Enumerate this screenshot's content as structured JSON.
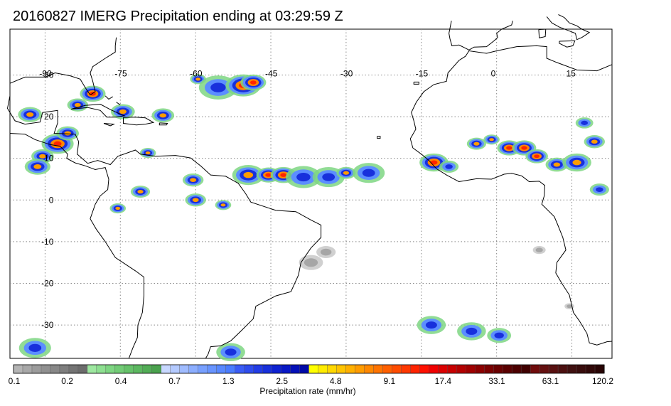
{
  "title": "20160827 IMERG Precipitation ending at 03:29:59 Z",
  "map": {
    "lon_range": [
      -97,
      23
    ],
    "lat_range": [
      -38,
      41
    ],
    "lon_grid": [
      -90,
      -75,
      -60,
      -45,
      -30,
      -15,
      0,
      15
    ],
    "lat_grid": [
      30,
      20,
      10,
      0,
      -10,
      -20,
      -30
    ],
    "lon_labels": [
      "-90",
      "-75",
      "-60",
      "-45",
      "-30",
      "-15",
      "0",
      "15"
    ],
    "lat_labels": [
      "30",
      "20",
      "10",
      "0",
      "-10",
      "-20",
      "-30"
    ],
    "coast_color": "#000000",
    "grid_color": "#888888"
  },
  "colorbar": {
    "label": "Precipitation rate (mm/hr)",
    "tick_labels": [
      "0.1",
      "0.2",
      "0.4",
      "0.7",
      "1.3",
      "2.5",
      "4.8",
      "9.1",
      "17.4",
      "33.1",
      "63.1",
      "120.2"
    ],
    "colors": [
      "#b4b4b4",
      "#a8a8a8",
      "#9c9c9c",
      "#909090",
      "#888888",
      "#7e7e7e",
      "#747474",
      "#6c6c6c",
      "#9ee8a0",
      "#8ee091",
      "#7ed682",
      "#72cc76",
      "#66c26a",
      "#5cb860",
      "#52ad56",
      "#4aa24e",
      "#c8d8ff",
      "#b4caff",
      "#a0bcff",
      "#8caeff",
      "#78a0ff",
      "#6894ff",
      "#5888ff",
      "#4a7cff",
      "#3a5cf6",
      "#2e4cee",
      "#223ce6",
      "#1830dc",
      "#0e22d2",
      "#0818c6",
      "#0410b8",
      "#000aa8",
      "#ffff00",
      "#ffec00",
      "#ffd800",
      "#ffc400",
      "#ffb000",
      "#ff9c00",
      "#ff8800",
      "#ff7400",
      "#ff6000",
      "#ff4c00",
      "#ff3800",
      "#ff2400",
      "#ff1000",
      "#f00000",
      "#dc0000",
      "#c80000",
      "#b40000",
      "#a00000",
      "#8c0000",
      "#7a0000",
      "#6a0000",
      "#5a0000",
      "#4c0000",
      "#400000",
      "#700c0c",
      "#641010",
      "#581010",
      "#4c1010",
      "#401010",
      "#380c0c",
      "#300808",
      "#280404"
    ]
  },
  "rain_cells": [
    {
      "lon": -80.5,
      "lat": 25.5,
      "r": 1.6,
      "level": 3
    },
    {
      "lon": -83.5,
      "lat": 22.8,
      "r": 1.3,
      "level": 2
    },
    {
      "lon": -93,
      "lat": 20.5,
      "r": 1.5,
      "level": 2
    },
    {
      "lon": -87.5,
      "lat": 13.5,
      "r": 2.0,
      "level": 3
    },
    {
      "lon": -90.5,
      "lat": 10.5,
      "r": 1.4,
      "level": 2
    },
    {
      "lon": -91.5,
      "lat": 8.0,
      "r": 1.6,
      "level": 2
    },
    {
      "lon": -85.5,
      "lat": 16.0,
      "r": 1.4,
      "level": 2
    },
    {
      "lon": -74.5,
      "lat": 21.2,
      "r": 1.5,
      "level": 2
    },
    {
      "lon": -66.5,
      "lat": 20.3,
      "r": 1.4,
      "level": 2
    },
    {
      "lon": -59.5,
      "lat": 29.0,
      "r": 1.0,
      "level": 2
    },
    {
      "lon": -55.5,
      "lat": 27.0,
      "r": 2.4,
      "level": 1
    },
    {
      "lon": -50.5,
      "lat": 27.5,
      "r": 2.2,
      "level": 3
    },
    {
      "lon": -48.5,
      "lat": 28.2,
      "r": 1.6,
      "level": 3
    },
    {
      "lon": -69.5,
      "lat": 11.3,
      "r": 1.0,
      "level": 2
    },
    {
      "lon": -60.5,
      "lat": 4.8,
      "r": 1.3,
      "level": 2
    },
    {
      "lon": -71.0,
      "lat": 2.0,
      "r": 1.2,
      "level": 2
    },
    {
      "lon": -60.0,
      "lat": 0.0,
      "r": 1.3,
      "level": 2
    },
    {
      "lon": -54.5,
      "lat": -1.2,
      "r": 1.0,
      "level": 2
    },
    {
      "lon": -75.5,
      "lat": -2.0,
      "r": 1.0,
      "level": 2
    },
    {
      "lon": -49.5,
      "lat": 6.0,
      "r": 2.0,
      "level": 2
    },
    {
      "lon": -45.5,
      "lat": 6.0,
      "r": 1.5,
      "level": 3
    },
    {
      "lon": -42.5,
      "lat": 6.0,
      "r": 1.6,
      "level": 3
    },
    {
      "lon": -38.5,
      "lat": 5.5,
      "r": 2.2,
      "level": 1
    },
    {
      "lon": -33.5,
      "lat": 5.5,
      "r": 2.0,
      "level": 1
    },
    {
      "lon": -30.0,
      "lat": 6.5,
      "r": 1.2,
      "level": 2
    },
    {
      "lon": -25.5,
      "lat": 6.5,
      "r": 2.0,
      "level": 1
    },
    {
      "lon": -12.5,
      "lat": 9.0,
      "r": 1.8,
      "level": 3
    },
    {
      "lon": -9.5,
      "lat": 8.0,
      "r": 1.2,
      "level": 1
    },
    {
      "lon": -4.0,
      "lat": 13.5,
      "r": 1.2,
      "level": 2
    },
    {
      "lon": -1.0,
      "lat": 14.5,
      "r": 1.0,
      "level": 2
    },
    {
      "lon": 2.5,
      "lat": 12.5,
      "r": 1.5,
      "level": 3
    },
    {
      "lon": 5.5,
      "lat": 12.5,
      "r": 1.5,
      "level": 3
    },
    {
      "lon": 8.0,
      "lat": 10.5,
      "r": 1.4,
      "level": 3
    },
    {
      "lon": 12.0,
      "lat": 8.5,
      "r": 1.4,
      "level": 2
    },
    {
      "lon": 16.0,
      "lat": 9.0,
      "r": 1.8,
      "level": 2
    },
    {
      "lon": 19.5,
      "lat": 14.0,
      "r": 1.3,
      "level": 2
    },
    {
      "lon": 17.5,
      "lat": 18.5,
      "r": 1.1,
      "level": 1
    },
    {
      "lon": 20.5,
      "lat": 2.5,
      "r": 1.2,
      "level": 1
    },
    {
      "lon": -53.0,
      "lat": -36.5,
      "r": 1.8,
      "level": 1
    },
    {
      "lon": -92.0,
      "lat": -35.5,
      "r": 2.0,
      "level": 1
    },
    {
      "lon": -13.0,
      "lat": -30.0,
      "r": 1.8,
      "level": 1
    },
    {
      "lon": -5.0,
      "lat": -31.5,
      "r": 1.8,
      "level": 1
    },
    {
      "lon": 0.5,
      "lat": -32.5,
      "r": 1.5,
      "level": 1
    },
    {
      "lon": -37.0,
      "lat": -15.0,
      "r": 1.5,
      "level": 0
    },
    {
      "lon": -34.0,
      "lat": -12.5,
      "r": 1.2,
      "level": 0
    },
    {
      "lon": 8.5,
      "lat": -12.0,
      "r": 0.8,
      "level": 0
    },
    {
      "lon": 14.5,
      "lat": -25.5,
      "r": 0.6,
      "level": 0
    }
  ]
}
